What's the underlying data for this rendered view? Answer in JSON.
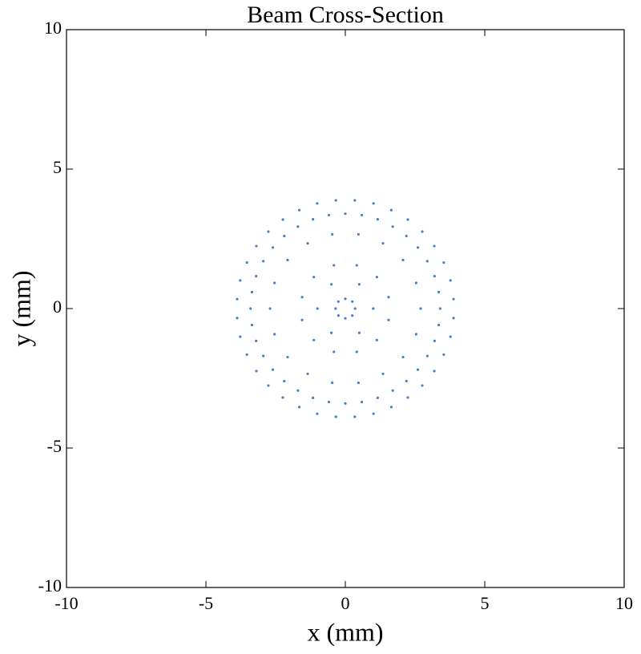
{
  "chart_data": {
    "type": "scatter",
    "title": "Beam Cross-Section",
    "x_label": "x (mm)",
    "y_label": "y (mm)",
    "color": "#4a80bb",
    "xlim": [
      -10,
      10
    ],
    "ylim": [
      -10,
      10
    ],
    "xticks": [
      -10,
      -5,
      0,
      5,
      10
    ],
    "yticks": [
      -10,
      -5,
      0,
      5,
      10
    ],
    "x": [
      3.4,
      3.35,
      3.2,
      2.94,
      2.6,
      2.19,
      1.7,
      1.16,
      0.59,
      0,
      -0.59,
      -1.16,
      -1.7,
      -2.19,
      -2.6,
      -2.94,
      -3.2,
      -3.35,
      -3.4,
      -3.35,
      -3.2,
      -2.94,
      -2.6,
      -2.19,
      -1.7,
      -1.16,
      -0.59,
      0,
      0.59,
      1.16,
      1.7,
      2.19,
      2.6,
      2.94,
      3.2,
      3.35,
      3.88,
      3.77,
      3.53,
      3.19,
      2.76,
      2.24,
      1.65,
      1.01,
      0.34,
      -0.34,
      -1.01,
      -1.65,
      -2.24,
      -2.76,
      -3.19,
      -3.53,
      -3.77,
      -3.88,
      -3.88,
      -3.77,
      -3.53,
      -3.19,
      -2.76,
      -2.24,
      -1.65,
      -1.01,
      -0.34,
      0.34,
      1.01,
      1.65,
      2.24,
      2.76,
      3.19,
      3.53,
      3.77,
      3.88,
      2.7,
      2.54,
      2.07,
      1.35,
      0.47,
      -0.47,
      -1.35,
      -2.07,
      -2.54,
      -2.7,
      -2.54,
      -2.07,
      -1.35,
      -0.47,
      0.47,
      1.35,
      2.07,
      2.54,
      1.55,
      1.13,
      0.41,
      -0.41,
      -1.13,
      -1.55,
      -1.55,
      -1.13,
      -0.41,
      0.41,
      1.13,
      1.55,
      1,
      0.5,
      -0.5,
      -1,
      -0.5,
      0.5,
      0.35,
      0.25,
      0,
      -0.25,
      -0.35,
      -0.25,
      0,
      0.25
    ],
    "values": [
      0,
      0.59,
      1.16,
      1.7,
      2.19,
      2.6,
      2.94,
      3.2,
      3.35,
      3.4,
      3.35,
      3.2,
      2.94,
      2.6,
      2.19,
      1.7,
      1.16,
      0.59,
      0,
      -0.59,
      -1.16,
      -1.7,
      -2.19,
      -2.6,
      -2.94,
      -3.2,
      -3.35,
      -3.4,
      -3.35,
      -3.2,
      -2.94,
      -2.6,
      -2.19,
      -1.7,
      -1.16,
      -0.59,
      0.34,
      1.01,
      1.65,
      2.24,
      2.76,
      3.19,
      3.53,
      3.77,
      3.88,
      3.88,
      3.77,
      3.53,
      3.19,
      2.76,
      2.24,
      1.65,
      1.01,
      0.34,
      -0.34,
      -1.01,
      -1.65,
      -2.24,
      -2.76,
      -3.19,
      -3.53,
      -3.77,
      -3.88,
      -3.88,
      -3.77,
      -3.53,
      -3.19,
      -2.76,
      -2.24,
      -1.65,
      -1.01,
      -0.34,
      0,
      0.92,
      1.74,
      2.34,
      2.66,
      2.66,
      2.34,
      1.74,
      0.92,
      0,
      -0.92,
      -1.74,
      -2.34,
      -2.66,
      -2.66,
      -2.34,
      -1.74,
      -0.92,
      0.41,
      1.13,
      1.55,
      1.55,
      1.13,
      0.41,
      -0.41,
      -1.13,
      -1.55,
      -1.55,
      -1.13,
      -0.41,
      0,
      0.87,
      0.87,
      0,
      -0.87,
      -0.87,
      0,
      0.25,
      0.35,
      0.25,
      0,
      -0.25,
      -0.35,
      -0.25
    ]
  }
}
